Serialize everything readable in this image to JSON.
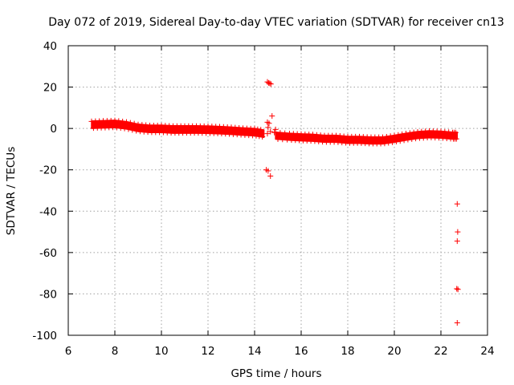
{
  "chart_data": {
    "type": "scatter",
    "title": "Day 072 of 2019, Sidereal Day-to-day VTEC variation (SDTVAR) for receiver cn13",
    "xlabel": "GPS time / hours",
    "ylabel": "SDTVAR / TECUs",
    "xlim": [
      6,
      24
    ],
    "ylim": [
      -100,
      40
    ],
    "x_ticks": [
      6,
      8,
      10,
      12,
      14,
      16,
      18,
      20,
      22,
      24
    ],
    "y_ticks": [
      40,
      20,
      0,
      -20,
      -40,
      -60,
      -80,
      -100
    ],
    "grid": true,
    "marker": "+",
    "color": "#ff0000",
    "series": [
      {
        "name": "SDTVAR",
        "band_segments": [
          {
            "x": [
              7.0,
              7.5,
              8.0,
              8.5,
              9.0,
              9.5,
              10.0,
              10.5,
              11.0,
              11.5,
              12.0,
              12.5,
              13.0,
              13.5,
              14.0,
              14.4
            ],
            "y": [
              1.8,
              2.0,
              2.2,
              1.5,
              0.3,
              -0.2,
              -0.2,
              -0.5,
              -0.5,
              -0.5,
              -0.6,
              -0.8,
              -1.1,
              -1.5,
              -1.8,
              -2.5
            ],
            "half_width": 1.8
          },
          {
            "x": [
              14.9,
              15.5,
              16.0,
              16.5,
              17.0,
              17.5,
              18.0,
              18.5,
              19.0,
              19.5,
              20.0,
              20.5,
              21.0,
              21.5,
              22.0,
              22.5,
              22.7
            ],
            "y": [
              -3.5,
              -4.0,
              -4.3,
              -4.5,
              -5.0,
              -5.0,
              -5.5,
              -5.5,
              -5.8,
              -5.8,
              -5.0,
              -4.0,
              -3.2,
              -2.8,
              -3.0,
              -3.5,
              -3.5
            ],
            "half_width": 1.7
          }
        ],
        "points": [
          {
            "x": 14.55,
            "y": 22.5
          },
          {
            "x": 14.6,
            "y": 22.0
          },
          {
            "x": 14.65,
            "y": 21.8
          },
          {
            "x": 14.7,
            "y": 21.5
          },
          {
            "x": 14.55,
            "y": 3.0
          },
          {
            "x": 14.62,
            "y": 2.5
          },
          {
            "x": 14.58,
            "y": 0.5
          },
          {
            "x": 14.55,
            "y": -2.5
          },
          {
            "x": 14.75,
            "y": 6.0
          },
          {
            "x": 14.68,
            "y": -1.5
          },
          {
            "x": 14.9,
            "y": -0.5
          },
          {
            "x": 14.85,
            "y": -2.0
          },
          {
            "x": 14.5,
            "y": -20.0
          },
          {
            "x": 14.58,
            "y": -20.5
          },
          {
            "x": 14.68,
            "y": -23.0
          },
          {
            "x": 22.7,
            "y": -36.5
          },
          {
            "x": 22.72,
            "y": -50.0
          },
          {
            "x": 22.7,
            "y": -54.5
          },
          {
            "x": 22.68,
            "y": -77.5
          },
          {
            "x": 22.73,
            "y": -77.8
          },
          {
            "x": 22.7,
            "y": -94.0
          }
        ]
      }
    ]
  }
}
